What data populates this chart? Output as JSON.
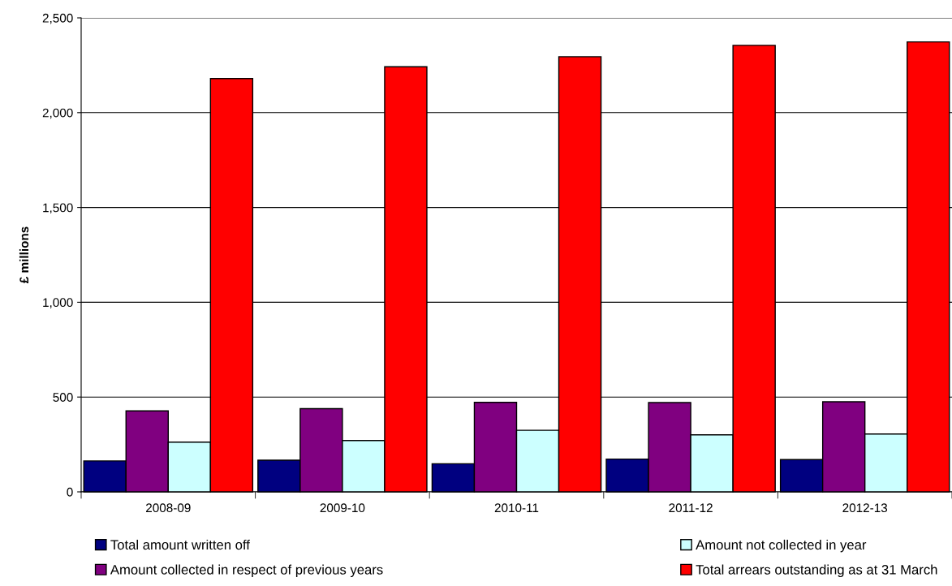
{
  "chart_data": {
    "type": "bar",
    "ylabel": "£ millions",
    "categories": [
      "2008-09",
      "2009-10",
      "2010-11",
      "2011-12",
      "2012-13"
    ],
    "series": [
      {
        "name": "Total amount written off",
        "color": "#000080",
        "values": [
          163,
          167,
          148,
          173,
          170
        ]
      },
      {
        "name": "Amount collected in respect of previous years",
        "color": "#800080",
        "values": [
          427,
          439,
          472,
          471,
          475
        ]
      },
      {
        "name": "Amount not collected in year",
        "color": "#ccffff",
        "values": [
          262,
          271,
          325,
          301,
          305
        ]
      },
      {
        "name": "Total arrears outstanding as at 31 March",
        "color": "#ff0000",
        "values": [
          2180,
          2242,
          2295,
          2355,
          2373
        ]
      }
    ],
    "ylim": [
      0,
      2500
    ],
    "yticks": [
      {
        "value": 0,
        "label": "0"
      },
      {
        "value": 500,
        "label": "500"
      },
      {
        "value": 1000,
        "label": "1,000"
      },
      {
        "value": 1500,
        "label": "1,500"
      },
      {
        "value": 2000,
        "label": "2,000"
      },
      {
        "value": 2500,
        "label": "2,500"
      }
    ],
    "grid": "y",
    "legend": "bottom"
  }
}
